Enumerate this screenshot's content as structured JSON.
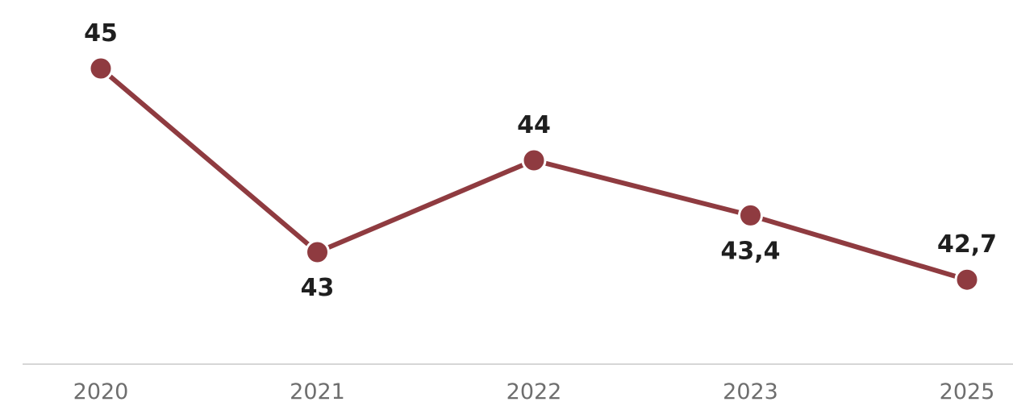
{
  "chart_data": {
    "type": "line",
    "title": "",
    "xlabel": "",
    "ylabel": "",
    "categories": [
      "2020",
      "2021",
      "2022",
      "2023",
      "2025"
    ],
    "series": [
      {
        "values": [
          45,
          43,
          44,
          43.4,
          42.7
        ],
        "data_labels": [
          "45",
          "43",
          "44",
          "43,4",
          "42,7"
        ],
        "color": "#8f3b40"
      }
    ],
    "ylim": [
      42,
      45.5
    ],
    "grid": false,
    "legend": "none",
    "axis_color": "#c8c8c8"
  }
}
